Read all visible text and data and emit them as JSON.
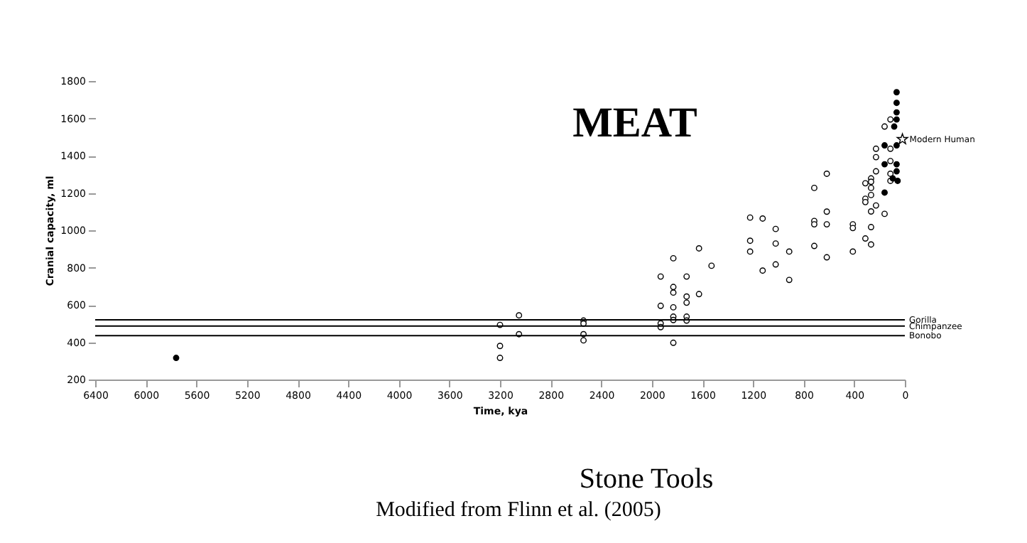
{
  "chart_data": {
    "type": "scatter",
    "xlabel": "Time, kya",
    "ylabel": "Cranial capacity, ml",
    "annotations": [
      "MEAT",
      "Stone Tools",
      "Modified from Flinn et al. (2005)"
    ],
    "xlim": [
      6400,
      0
    ],
    "xticks": [
      6400,
      6000,
      5600,
      5200,
      4800,
      4400,
      4000,
      3600,
      3200,
      2800,
      2400,
      2000,
      1600,
      1200,
      800,
      400,
      0
    ],
    "ylim": [
      200,
      1800
    ],
    "yticks": [
      200,
      400,
      600,
      800,
      1000,
      1200,
      1400,
      1600,
      1800
    ],
    "grid": false,
    "series": [
      {
        "color": "#ffffff",
        "marker": "circle",
        "x": [
          3200,
          3200,
          3200,
          3050,
          3050,
          2540,
          2540,
          2540,
          2540,
          1930,
          1930,
          1930,
          1930,
          1830,
          1830,
          1830,
          1830,
          1830,
          1830,
          1830,
          1725,
          1725,
          1725,
          1725,
          1725,
          1627,
          1627,
          1528,
          1223,
          1223,
          1223,
          1124,
          1124,
          1021,
          1021,
          1021,
          914,
          914,
          716,
          716,
          716,
          716,
          617,
          617,
          617,
          617,
          411,
          411,
          411,
          312,
          312,
          312,
          312,
          267,
          267,
          267,
          267,
          267,
          267,
          267,
          228,
          228,
          228,
          228,
          160,
          160,
          114,
          114,
          114,
          114,
          114
        ],
        "values": [
          493,
          380,
          316,
          544,
          443,
          516,
          500,
          443,
          410,
          752,
          595,
          501,
          481,
          850,
          696,
          666,
          587,
          537,
          519,
          397,
          752,
          645,
          612,
          537,
          516,
          903,
          658,
          810,
          1068,
          944,
          886,
          1063,
          784,
          1007,
          929,
          817,
          886,
          734,
          1227,
          1050,
          1032,
          916,
          1303,
          1100,
          1032,
          855,
          1032,
          1012,
          886,
          1252,
          1169,
          1151,
          956,
          1278,
          1260,
          1227,
          1189,
          1101,
          1017,
          924,
          1437,
          1392,
          1316,
          1133,
          1088,
          1556,
          1594,
          1437,
          1371,
          1303,
          1265
        ]
      },
      {
        "color": "#000000",
        "marker": "circle",
        "x": [
          5760,
          65,
          65,
          65,
          65,
          84,
          160,
          160,
          160,
          65,
          65,
          65,
          95,
          57
        ],
        "values": [
          316,
          1740,
          1683,
          1632,
          1594,
          1556,
          1455,
          1354,
          1202,
          1455,
          1354,
          1316,
          1278,
          1265
        ]
      },
      {
        "name": "Modern Human",
        "color": "#ffffff",
        "marker": "star",
        "x": [
          19
        ],
        "values": [
          1488
        ]
      }
    ],
    "ref_lines": [
      {
        "axis": "y",
        "value": 520,
        "label": "Gorilla"
      },
      {
        "axis": "y",
        "value": 487,
        "label": "Chimpanzee"
      },
      {
        "axis": "y",
        "value": 435,
        "label": "Bonobo"
      }
    ]
  }
}
